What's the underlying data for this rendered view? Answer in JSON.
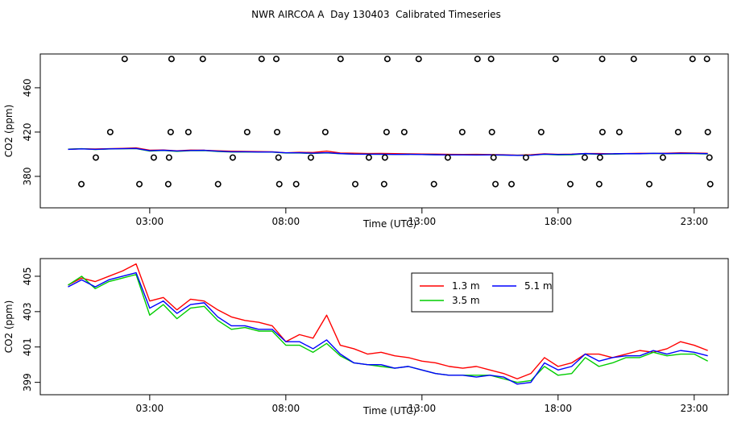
{
  "chart_data": [
    {
      "type": "line",
      "title": "NWR AIRCOA A  Day 130403  Calibrated Timeseries",
      "xlabel": "Time (UTC)",
      "ylabel": "CO2 (ppm)",
      "xlim": [
        -1.02,
        24.25
      ],
      "ylim": [
        351.6,
        490.5
      ],
      "xticks": [
        {
          "value": 3,
          "label": "03:00"
        },
        {
          "value": 8,
          "label": "08:00"
        },
        {
          "value": 13,
          "label": "13:00"
        },
        {
          "value": 18,
          "label": "18:00"
        },
        {
          "value": 23,
          "label": "23:00"
        }
      ],
      "yticks": [
        380,
        420,
        460
      ],
      "x": [
        0,
        0.5,
        1,
        1.5,
        2,
        2.5,
        3,
        3.5,
        4,
        4.5,
        5,
        5.5,
        6,
        6.5,
        7,
        7.5,
        8,
        8.5,
        9,
        9.5,
        10,
        10.5,
        11,
        11.5,
        12,
        12.5,
        13,
        13.5,
        14,
        14.5,
        15,
        15.5,
        16,
        16.5,
        17,
        17.5,
        18,
        18.5,
        19,
        19.5,
        20,
        20.5,
        21,
        21.5,
        22,
        22.5,
        23,
        23.5
      ],
      "series": [
        {
          "name": "1.3 m",
          "color": "#ff0000",
          "values": [
            404.5,
            404.9,
            404.7,
            405.0,
            405.3,
            405.7,
            403.6,
            403.8,
            403.1,
            403.7,
            403.6,
            403.1,
            402.7,
            402.5,
            402.4,
            402.2,
            401.3,
            401.7,
            401.5,
            402.8,
            401.1,
            400.9,
            400.6,
            400.7,
            400.5,
            400.4,
            400.2,
            400.1,
            399.9,
            399.8,
            399.9,
            399.7,
            399.5,
            399.2,
            399.5,
            400.4,
            399.9,
            400.1,
            400.6,
            400.6,
            400.4,
            400.6,
            400.8,
            400.7,
            400.9,
            401.3,
            401.1,
            400.8
          ]
        },
        {
          "name": "3.5 m",
          "color": "#00cd00",
          "values": [
            404.5,
            405.0,
            404.3,
            404.7,
            404.9,
            405.1,
            402.8,
            403.4,
            402.6,
            403.2,
            403.3,
            402.5,
            402.0,
            402.1,
            401.9,
            401.9,
            401.1,
            401.1,
            400.7,
            401.2,
            400.5,
            400.1,
            400.0,
            399.9,
            399.8,
            399.9,
            399.7,
            399.5,
            399.4,
            399.4,
            399.4,
            399.4,
            399.2,
            399.0,
            399.1,
            399.9,
            399.4,
            399.5,
            400.4,
            399.9,
            400.1,
            400.4,
            400.4,
            400.7,
            400.5,
            400.6,
            400.6,
            400.2
          ]
        },
        {
          "name": "5.1 m",
          "color": "#0000ff",
          "values": [
            404.4,
            404.8,
            404.4,
            404.8,
            405.0,
            405.2,
            403.2,
            403.6,
            402.9,
            403.4,
            403.5,
            402.7,
            402.2,
            402.2,
            402.0,
            402.0,
            401.3,
            401.3,
            400.9,
            401.4,
            400.6,
            400.1,
            400.0,
            400.0,
            399.8,
            399.9,
            399.7,
            399.5,
            399.4,
            399.4,
            399.3,
            399.4,
            399.3,
            398.9,
            399.0,
            400.1,
            399.7,
            399.9,
            400.6,
            400.2,
            400.4,
            400.5,
            400.5,
            400.8,
            400.6,
            400.8,
            400.7,
            400.5
          ]
        }
      ],
      "markers": {
        "color": "#000000",
        "x": [
          2.08,
          3.8,
          4.95,
          7.11,
          7.65,
          10.01,
          11.73,
          12.88,
          15.04,
          15.54,
          17.91,
          19.62,
          20.78,
          22.94,
          23.47,
          1.55,
          3.77,
          4.42,
          6.58,
          7.68,
          9.45,
          11.7,
          12.35,
          14.48,
          15.57,
          17.38,
          19.63,
          20.25,
          22.41,
          23.5,
          1.02,
          3.15,
          3.71,
          6.05,
          7.73,
          8.92,
          11.05,
          11.64,
          13.95,
          15.63,
          16.82,
          18.98,
          19.54,
          21.85,
          23.56,
          0.49,
          2.62,
          3.68,
          5.51,
          7.76,
          8.38,
          10.55,
          11.61,
          13.44,
          15.7,
          16.29,
          18.45,
          19.51,
          21.35,
          23.59
        ],
        "values": [
          486,
          486,
          486,
          486,
          486,
          486,
          486,
          486,
          486,
          486,
          486,
          486,
          486,
          486,
          486,
          420,
          420,
          420,
          420,
          420,
          420,
          420,
          420,
          420,
          420,
          420,
          420,
          420,
          420,
          420,
          397,
          397,
          397,
          397,
          397,
          397,
          397,
          397,
          397,
          397,
          397,
          397,
          397,
          397,
          397,
          373,
          373,
          373,
          373,
          373,
          373,
          373,
          373,
          373,
          373,
          373,
          373,
          373,
          373,
          373
        ]
      }
    },
    {
      "type": "line",
      "xlabel": "Time (UTC)",
      "ylabel": "CO2 (ppm)",
      "xlim": [
        -1.02,
        24.25
      ],
      "ylim": [
        398.3,
        406
      ],
      "xticks": [
        {
          "value": 3,
          "label": "03:00"
        },
        {
          "value": 8,
          "label": "08:00"
        },
        {
          "value": 13,
          "label": "13:00"
        },
        {
          "value": 18,
          "label": "18:00"
        },
        {
          "value": 23,
          "label": "23:00"
        }
      ],
      "yticks": [
        399,
        401,
        403,
        405
      ],
      "legend": "top",
      "x": [
        0,
        0.5,
        1,
        1.5,
        2,
        2.5,
        3,
        3.5,
        4,
        4.5,
        5,
        5.5,
        6,
        6.5,
        7,
        7.5,
        8,
        8.5,
        9,
        9.5,
        10,
        10.5,
        11,
        11.5,
        12,
        12.5,
        13,
        13.5,
        14,
        14.5,
        15,
        15.5,
        16,
        16.5,
        17,
        17.5,
        18,
        18.5,
        19,
        19.5,
        20,
        20.5,
        21,
        21.5,
        22,
        22.5,
        23,
        23.5
      ],
      "series": [
        {
          "name": "1.3 m",
          "color": "#ff0000",
          "values": [
            404.5,
            404.9,
            404.7,
            405.0,
            405.3,
            405.7,
            403.6,
            403.8,
            403.1,
            403.7,
            403.6,
            403.1,
            402.7,
            402.5,
            402.4,
            402.2,
            401.3,
            401.7,
            401.5,
            402.8,
            401.1,
            400.9,
            400.6,
            400.7,
            400.5,
            400.4,
            400.2,
            400.1,
            399.9,
            399.8,
            399.9,
            399.7,
            399.5,
            399.2,
            399.5,
            400.4,
            399.9,
            400.1,
            400.6,
            400.6,
            400.4,
            400.6,
            400.8,
            400.7,
            400.9,
            401.3,
            401.1,
            400.8
          ]
        },
        {
          "name": "3.5 m",
          "color": "#00cd00",
          "values": [
            404.5,
            405.0,
            404.3,
            404.7,
            404.9,
            405.1,
            402.8,
            403.4,
            402.6,
            403.2,
            403.3,
            402.5,
            402.0,
            402.1,
            401.9,
            401.9,
            401.1,
            401.1,
            400.7,
            401.2,
            400.5,
            400.1,
            400.0,
            399.9,
            399.8,
            399.9,
            399.7,
            399.5,
            399.4,
            399.4,
            399.4,
            399.4,
            399.2,
            399.0,
            399.1,
            399.9,
            399.4,
            399.5,
            400.4,
            399.9,
            400.1,
            400.4,
            400.4,
            400.7,
            400.5,
            400.6,
            400.6,
            400.2
          ]
        },
        {
          "name": "5.1 m",
          "color": "#0000ff",
          "values": [
            404.4,
            404.8,
            404.4,
            404.8,
            405.0,
            405.2,
            403.2,
            403.6,
            402.9,
            403.4,
            403.5,
            402.7,
            402.2,
            402.2,
            402.0,
            402.0,
            401.3,
            401.3,
            400.9,
            401.4,
            400.6,
            400.1,
            400.0,
            400.0,
            399.8,
            399.9,
            399.7,
            399.5,
            399.4,
            399.4,
            399.3,
            399.4,
            399.3,
            398.9,
            399.0,
            400.1,
            399.7,
            399.9,
            400.6,
            400.2,
            400.4,
            400.5,
            400.5,
            400.8,
            400.6,
            400.8,
            400.7,
            400.5
          ]
        }
      ]
    }
  ]
}
